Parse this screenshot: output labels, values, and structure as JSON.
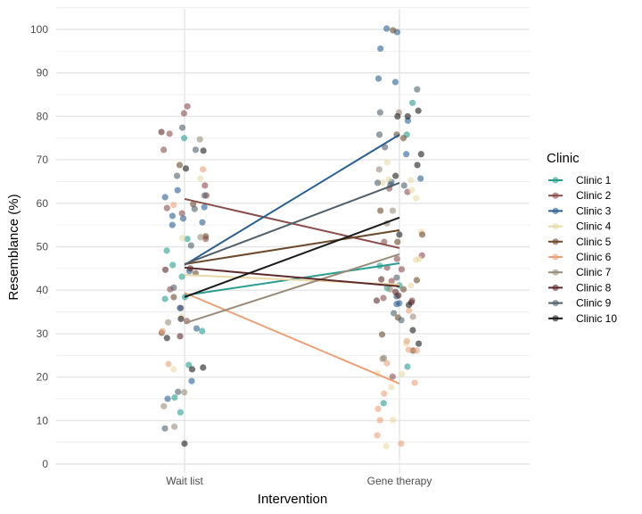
{
  "chart_data": {
    "type": "scatter",
    "title": "",
    "xlabel": "Intervention",
    "ylabel": "Resemblance (%)",
    "categories": [
      "Wait list",
      "Gene therapy"
    ],
    "ylim": [
      0,
      105
    ],
    "yticks": [
      0,
      10,
      20,
      30,
      40,
      50,
      60,
      70,
      80,
      90,
      100
    ],
    "grid": true,
    "legend": {
      "title": "Clinic",
      "position": "right"
    },
    "series": [
      {
        "name": "Clinic 1",
        "color": "#2a9d8f",
        "mean_line": [
          38.8,
          46.2
        ],
        "points": [
          [
            0,
            75.0
          ],
          [
            0,
            51.8
          ],
          [
            0,
            49.1
          ],
          [
            0,
            45.8
          ],
          [
            0,
            43.1
          ],
          [
            0,
            38.4
          ],
          [
            0,
            38.0
          ],
          [
            0,
            30.6
          ],
          [
            0,
            22.8
          ],
          [
            0,
            11.9
          ],
          [
            0,
            15.3
          ],
          [
            1,
            83.1
          ],
          [
            1,
            75.8
          ],
          [
            1,
            45.6
          ],
          [
            1,
            41.1
          ],
          [
            1,
            40.5
          ],
          [
            1,
            22.4
          ],
          [
            1,
            14.0
          ]
        ]
      },
      {
        "name": "Clinic 2",
        "color": "#8b4c4c",
        "mean_line": [
          61.0,
          49.7
        ],
        "points": [
          [
            0,
            82.3
          ],
          [
            0,
            80.7
          ],
          [
            0,
            76.0
          ],
          [
            0,
            72.3
          ],
          [
            0,
            64.1
          ],
          [
            0,
            61.8
          ],
          [
            0,
            58.9
          ],
          [
            0,
            57.7
          ],
          [
            0,
            51.8
          ],
          [
            0,
            40.2
          ],
          [
            0,
            35.9
          ],
          [
            0,
            32.9
          ],
          [
            1,
            62.6
          ],
          [
            1,
            63.4
          ],
          [
            1,
            51.1
          ],
          [
            1,
            48.0
          ],
          [
            1,
            47.2
          ],
          [
            1,
            45.2
          ],
          [
            1,
            44.8
          ],
          [
            1,
            42.1
          ],
          [
            1,
            38.2
          ],
          [
            1,
            37.6
          ],
          [
            1,
            20.1
          ]
        ]
      },
      {
        "name": "Clinic 3",
        "color": "#2a5f8f",
        "mean_line": [
          45.8,
          75.8
        ],
        "points": [
          [
            0,
            63.0
          ],
          [
            0,
            61.4
          ],
          [
            0,
            59.1
          ],
          [
            0,
            57.1
          ],
          [
            0,
            55.6
          ],
          [
            0,
            56.5
          ],
          [
            0,
            55.0
          ],
          [
            0,
            44.4
          ],
          [
            0,
            35.9
          ],
          [
            0,
            31.2
          ],
          [
            0,
            19.1
          ],
          [
            0,
            15.0
          ],
          [
            1,
            100.2
          ],
          [
            1,
            99.4
          ],
          [
            1,
            95.6
          ],
          [
            1,
            88.7
          ],
          [
            1,
            87.9
          ],
          [
            1,
            79.0
          ],
          [
            1,
            71.3
          ],
          [
            1,
            65.7
          ],
          [
            1,
            64.9
          ],
          [
            1,
            38.6
          ],
          [
            1,
            37.0
          ],
          [
            1,
            36.8
          ]
        ]
      },
      {
        "name": "Clinic 4",
        "color": "#e9d8a6",
        "mean_line": [
          43.5,
          41.3
        ],
        "points": [
          [
            0,
            65.7
          ],
          [
            0,
            52.0
          ],
          [
            0,
            33.9
          ],
          [
            0,
            21.8
          ],
          [
            1,
            69.4
          ],
          [
            1,
            65.3
          ],
          [
            1,
            64.7
          ],
          [
            1,
            65.5
          ],
          [
            1,
            63.0
          ],
          [
            1,
            61.2
          ],
          [
            1,
            53.4
          ],
          [
            1,
            47.2
          ],
          [
            1,
            47.0
          ],
          [
            1,
            41.1
          ],
          [
            1,
            27.7
          ],
          [
            1,
            20.7
          ],
          [
            1,
            20.9
          ],
          [
            1,
            17.7
          ],
          [
            1,
            10.1
          ],
          [
            1,
            4.1
          ]
        ]
      },
      {
        "name": "Clinic 5",
        "color": "#6b4a2b",
        "mean_line": [
          46.0,
          53.8
        ],
        "points": [
          [
            0,
            68.8
          ],
          [
            0,
            59.8
          ],
          [
            0,
            43.9
          ],
          [
            0,
            38.4
          ],
          [
            0,
            52.4
          ],
          [
            0,
            30.2
          ],
          [
            1,
            99.8
          ],
          [
            1,
            75.0
          ],
          [
            1,
            75.8
          ],
          [
            1,
            58.3
          ],
          [
            1,
            52.8
          ],
          [
            1,
            51.1
          ],
          [
            1,
            42.3
          ],
          [
            1,
            40.2
          ],
          [
            1,
            33.7
          ],
          [
            1,
            29.8
          ],
          [
            1,
            26.1
          ]
        ]
      },
      {
        "name": "Clinic 6",
        "color": "#e9a27a",
        "mean_line": [
          39.4,
          18.5
        ],
        "points": [
          [
            0,
            67.8
          ],
          [
            0,
            59.6
          ],
          [
            0,
            30.6
          ],
          [
            0,
            23.0
          ],
          [
            1,
            35.3
          ],
          [
            1,
            26.3
          ],
          [
            1,
            28.3
          ],
          [
            1,
            26.1
          ],
          [
            1,
            23.2
          ],
          [
            1,
            18.7
          ],
          [
            1,
            16.2
          ],
          [
            1,
            12.7
          ],
          [
            1,
            10.1
          ],
          [
            1,
            6.6
          ],
          [
            1,
            4.7
          ]
        ]
      },
      {
        "name": "Clinic 7",
        "color": "#9a8c7a",
        "mean_line": [
          32.4,
          48.3
        ],
        "points": [
          [
            0,
            74.7
          ],
          [
            0,
            52.2
          ],
          [
            0,
            32.6
          ],
          [
            0,
            16.5
          ],
          [
            0,
            13.3
          ],
          [
            0,
            8.6
          ],
          [
            1,
            80.9
          ],
          [
            1,
            67.8
          ],
          [
            1,
            58.3
          ],
          [
            1,
            55.4
          ],
          [
            1,
            40.2
          ],
          [
            1,
            33.9
          ],
          [
            1,
            24.2
          ],
          [
            1,
            24.4
          ]
        ]
      },
      {
        "name": "Clinic 8",
        "color": "#5c2a2a",
        "mean_line": [
          45.2,
          40.9
        ],
        "points": [
          [
            0,
            76.4
          ],
          [
            0,
            45.0
          ],
          [
            0,
            44.7
          ],
          [
            0,
            29.4
          ],
          [
            1,
            42.5
          ],
          [
            1,
            38.8
          ],
          [
            1,
            39.6
          ],
          [
            1,
            37.6
          ],
          [
            1,
            37.2
          ]
        ]
      },
      {
        "name": "Clinic 9",
        "color": "#4f5f6a",
        "mean_line": [
          46.0,
          64.7
        ],
        "points": [
          [
            0,
            77.4
          ],
          [
            0,
            72.3
          ],
          [
            0,
            66.3
          ],
          [
            0,
            61.8
          ],
          [
            0,
            58.7
          ],
          [
            0,
            50.3
          ],
          [
            0,
            40.6
          ],
          [
            0,
            16.6
          ],
          [
            0,
            8.2
          ],
          [
            1,
            86.2
          ],
          [
            1,
            80.9
          ],
          [
            1,
            75.8
          ],
          [
            1,
            72.9
          ],
          [
            1,
            64.3
          ],
          [
            1,
            64.7
          ],
          [
            1,
            64.1
          ],
          [
            1,
            42.9
          ],
          [
            1,
            34.7
          ],
          [
            1,
            33.1
          ]
        ]
      },
      {
        "name": "Clinic 10",
        "color": "#1a1a1a",
        "mean_line": [
          38.4,
          56.7
        ],
        "points": [
          [
            0,
            72.1
          ],
          [
            0,
            68.0
          ],
          [
            0,
            33.4
          ],
          [
            0,
            29.0
          ],
          [
            0,
            22.2
          ],
          [
            0,
            21.8
          ],
          [
            0,
            4.7
          ],
          [
            1,
            81.3
          ],
          [
            1,
            80.0
          ],
          [
            1,
            80.0
          ],
          [
            1,
            71.3
          ],
          [
            1,
            68.8
          ],
          [
            1,
            66.3
          ],
          [
            1,
            52.8
          ],
          [
            1,
            36.6
          ],
          [
            1,
            30.8
          ],
          [
            1,
            27.7
          ]
        ]
      }
    ]
  }
}
